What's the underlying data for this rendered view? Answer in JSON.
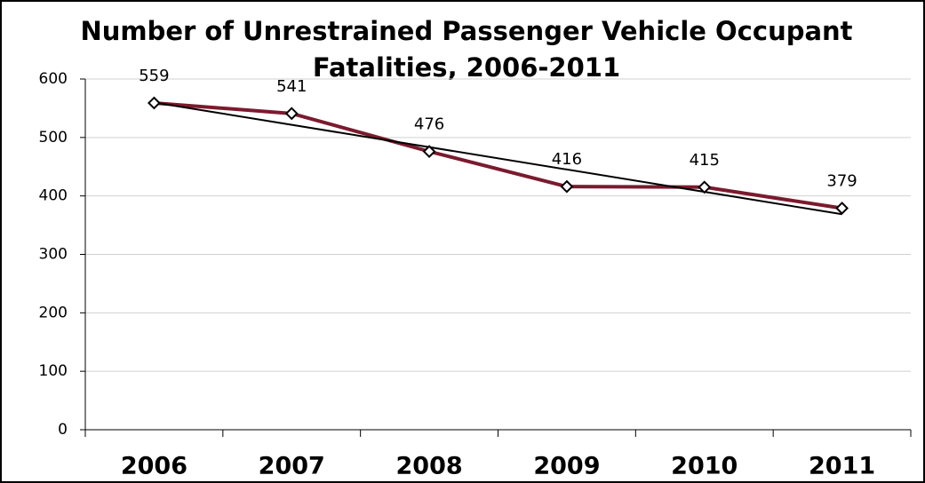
{
  "chart_data": {
    "type": "line",
    "title": [
      "Number of Unrestrained Passenger Vehicle Occupant",
      "Fatalities, 2006-2011"
    ],
    "categories": [
      "2006",
      "2007",
      "2008",
      "2009",
      "2010",
      "2011"
    ],
    "series": [
      {
        "name": "Fatalities",
        "color": "#7b1a2e",
        "values": [
          559,
          541,
          476,
          416,
          415,
          379
        ]
      }
    ],
    "trendline": {
      "type": "linear",
      "color": "#000000"
    },
    "ylim": [
      0,
      600
    ],
    "yticks": [
      0,
      100,
      200,
      300,
      400,
      500,
      600
    ],
    "grid": true
  }
}
